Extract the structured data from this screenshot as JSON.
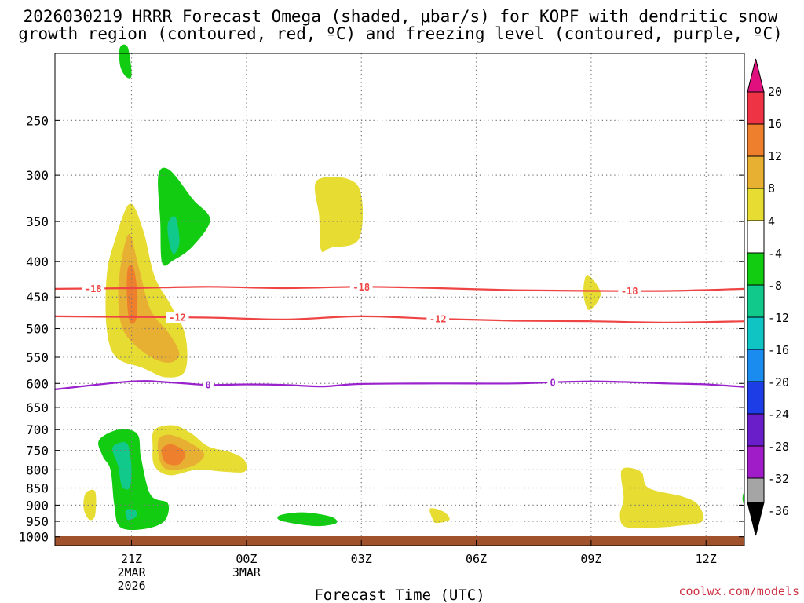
{
  "title_line1": "2026030219 HRRR Forecast Omega (shaded, μbar/s) for KOPF with dendritic snow",
  "title_line2": "growth region (contoured, red, ºC) and freezing level (contoured, purple, ºC)",
  "credit": "coolwx.com/models",
  "chart_data": {
    "type": "heatmap",
    "title": "2026030219 HRRR Forecast Omega (shaded, μbar/s) for KOPF with dendritic snow growth region (contoured, red, ºC) and freezing level (contoured, purple, ºC)",
    "xlabel": "Forecast Time (UTC)",
    "ylabel": "",
    "x_range_hours": [
      -2,
      16
    ],
    "x_ticks": [
      {
        "hour": 0,
        "lines": [
          "21Z",
          "2MAR",
          "2026"
        ]
      },
      {
        "hour": 3,
        "lines": [
          "00Z",
          "3MAR"
        ]
      },
      {
        "hour": 6,
        "lines": [
          "03Z"
        ]
      },
      {
        "hour": 9,
        "lines": [
          "06Z"
        ]
      },
      {
        "hour": 12,
        "lines": [
          "09Z"
        ]
      },
      {
        "hour": 15,
        "lines": [
          "12Z"
        ]
      }
    ],
    "y_axis": "pressure (hPa), log scale, inverted",
    "y_range": [
      1030,
      200
    ],
    "y_ticks": [
      250,
      300,
      350,
      400,
      450,
      500,
      550,
      600,
      650,
      700,
      750,
      800,
      850,
      900,
      950,
      1000
    ],
    "grid": true,
    "ground_level_hpa": 1010,
    "colorbar": {
      "labels": [
        20,
        16,
        12,
        8,
        4,
        -4,
        -8,
        -12,
        -16,
        -20,
        -24,
        -28,
        -32,
        -36
      ],
      "top_color": "#e0107f",
      "segments": [
        {
          "range": "16 to 20",
          "color": "#ee3344"
        },
        {
          "range": "12 to 16",
          "color": "#ee7f2d"
        },
        {
          "range": "8 to 12",
          "color": "#e8b032"
        },
        {
          "range": "4 to 8",
          "color": "#e6dc32"
        },
        {
          "range": "-4 to 4",
          "color": "#ffffff"
        },
        {
          "range": "-8 to -4",
          "color": "#12cc12"
        },
        {
          "range": "-12 to -8",
          "color": "#11c98a"
        },
        {
          "range": "-16 to -12",
          "color": "#11c4c4"
        },
        {
          "range": "-20 to -16",
          "color": "#1a8cf0"
        },
        {
          "range": "-24 to -20",
          "color": "#1d3de6"
        },
        {
          "range": "-28 to -24",
          "color": "#6a1ec9"
        },
        {
          "range": "-32 to -28",
          "color": "#a01cc9"
        },
        {
          "range": "-36 to -32",
          "color": "#a5a5a5"
        }
      ],
      "bottom_color": "#000000"
    },
    "temperature_contours": [
      {
        "label": "-18",
        "color": "#ee4444",
        "label_hours": [
          -1.0,
          6.0,
          13.0
        ],
        "points": [
          [
            -2,
            438
          ],
          [
            0,
            437
          ],
          [
            2,
            435
          ],
          [
            4,
            437
          ],
          [
            6,
            435
          ],
          [
            8,
            437
          ],
          [
            10,
            440
          ],
          [
            12,
            441
          ],
          [
            14,
            441
          ],
          [
            16,
            438
          ]
        ]
      },
      {
        "label": "-12",
        "color": "#ee4444",
        "label_hours": [
          1.2,
          8.0
        ],
        "points": [
          [
            -2,
            480
          ],
          [
            0,
            481
          ],
          [
            2,
            482
          ],
          [
            4,
            485
          ],
          [
            6,
            480
          ],
          [
            8,
            484
          ],
          [
            10,
            487
          ],
          [
            12,
            488
          ],
          [
            14,
            490
          ],
          [
            16,
            488
          ]
        ]
      },
      {
        "label": "0",
        "color": "#9922cc",
        "label_hours": [
          2.0,
          11.0
        ],
        "points": [
          [
            -2,
            612
          ],
          [
            0,
            596
          ],
          [
            1,
            598
          ],
          [
            2,
            603
          ],
          [
            3,
            602
          ],
          [
            4,
            603
          ],
          [
            5,
            606
          ],
          [
            6,
            601
          ],
          [
            8,
            600
          ],
          [
            10,
            600
          ],
          [
            12,
            596
          ],
          [
            14,
            600
          ],
          [
            15,
            602
          ],
          [
            16,
            607
          ]
        ]
      }
    ],
    "omega_regions": [
      {
        "value": -4,
        "color": "#12cc12",
        "points": [
          [
            -0.3,
            196
          ],
          [
            -0.1,
            196
          ],
          [
            0,
            215
          ],
          [
            -0.15,
            216
          ],
          [
            -0.3,
            208
          ]
        ]
      },
      {
        "value": -4,
        "color": "#12cc12",
        "points": [
          [
            0.7,
            300
          ],
          [
            1.0,
            295
          ],
          [
            1.6,
            325
          ],
          [
            2.05,
            348
          ],
          [
            1.6,
            380
          ],
          [
            1.1,
            398
          ],
          [
            0.8,
            402
          ],
          [
            0.75,
            350
          ]
        ]
      },
      {
        "value": -8,
        "color": "#11c98a",
        "points": [
          [
            0.95,
            352
          ],
          [
            1.15,
            345
          ],
          [
            1.25,
            375
          ],
          [
            1.1,
            390
          ],
          [
            0.98,
            375
          ]
        ]
      },
      {
        "value": -4,
        "color": "#12cc12",
        "points": [
          [
            -0.85,
            725
          ],
          [
            -0.35,
            700
          ],
          [
            0.15,
            710
          ],
          [
            0.25,
            770
          ],
          [
            0.5,
            870
          ],
          [
            0.95,
            895
          ],
          [
            0.85,
            950
          ],
          [
            0.3,
            975
          ],
          [
            -0.3,
            968
          ],
          [
            -0.45,
            900
          ],
          [
            -0.55,
            800
          ],
          [
            -0.75,
            765
          ]
        ]
      },
      {
        "value": -8,
        "color": "#11c98a",
        "points": [
          [
            -0.5,
            745
          ],
          [
            -0.25,
            730
          ],
          [
            -0.08,
            740
          ],
          [
            0.0,
            800
          ],
          [
            -0.05,
            850
          ],
          [
            -0.25,
            845
          ],
          [
            -0.35,
            790
          ]
        ]
      },
      {
        "value": -8,
        "color": "#11c98a",
        "points": [
          [
            -0.15,
            915
          ],
          [
            0.1,
            915
          ],
          [
            0.12,
            935
          ],
          [
            -0.1,
            945
          ]
        ]
      },
      {
        "value": -4,
        "color": "#12cc12",
        "points": [
          [
            3.9,
            930
          ],
          [
            4.5,
            922
          ],
          [
            5.2,
            935
          ],
          [
            5.35,
            955
          ],
          [
            4.9,
            965
          ],
          [
            4.3,
            958
          ],
          [
            3.85,
            945
          ]
        ]
      },
      {
        "value": -4,
        "color": "#12cc12",
        "points": [
          [
            15.95,
            880
          ],
          [
            16.0,
            860
          ],
          [
            16.0,
            900
          ]
        ]
      },
      {
        "value": 4,
        "color": "#e6dc32",
        "points": [
          [
            -0.45,
            375
          ],
          [
            -0.05,
            330
          ],
          [
            0.3,
            360
          ],
          [
            0.6,
            420
          ],
          [
            1.0,
            460
          ],
          [
            1.4,
            510
          ],
          [
            1.4,
            575
          ],
          [
            0.9,
            588
          ],
          [
            0.3,
            570
          ],
          [
            -0.4,
            550
          ],
          [
            -0.65,
            500
          ],
          [
            -0.65,
            420
          ]
        ]
      },
      {
        "value": 8,
        "color": "#e8b032",
        "points": [
          [
            -0.25,
            395
          ],
          [
            -0.05,
            365
          ],
          [
            0.2,
            410
          ],
          [
            0.5,
            470
          ],
          [
            1.0,
            510
          ],
          [
            1.25,
            545
          ],
          [
            0.95,
            560
          ],
          [
            0.4,
            545
          ],
          [
            -0.2,
            505
          ],
          [
            -0.35,
            450
          ]
        ]
      },
      {
        "value": 12,
        "color": "#ee7f2d",
        "points": [
          [
            -0.1,
            410
          ],
          [
            0.05,
            408
          ],
          [
            0.15,
            445
          ],
          [
            0.12,
            485
          ],
          [
            -0.05,
            488
          ],
          [
            -0.12,
            450
          ]
        ]
      },
      {
        "value": 4,
        "color": "#e6dc32",
        "points": [
          [
            0.6,
            700
          ],
          [
            1.1,
            690
          ],
          [
            1.55,
            708
          ],
          [
            2.0,
            740
          ],
          [
            2.6,
            755
          ],
          [
            2.95,
            775
          ],
          [
            2.95,
            805
          ],
          [
            2.4,
            805
          ],
          [
            1.7,
            800
          ],
          [
            1.0,
            815
          ],
          [
            0.6,
            790
          ],
          [
            0.55,
            740
          ]
        ]
      },
      {
        "value": 8,
        "color": "#e8b032",
        "points": [
          [
            0.7,
            725
          ],
          [
            1.0,
            712
          ],
          [
            1.5,
            730
          ],
          [
            1.9,
            760
          ],
          [
            1.6,
            790
          ],
          [
            1.0,
            800
          ],
          [
            0.75,
            780
          ]
        ]
      },
      {
        "value": 12,
        "color": "#ee7f2d",
        "points": [
          [
            0.8,
            745
          ],
          [
            1.05,
            735
          ],
          [
            1.4,
            755
          ],
          [
            1.25,
            785
          ],
          [
            0.95,
            785
          ],
          [
            0.82,
            770
          ]
        ]
      },
      {
        "value": 4,
        "color": "#e6dc32",
        "points": [
          [
            -1.2,
            865
          ],
          [
            -0.95,
            860
          ],
          [
            -0.95,
            930
          ],
          [
            -1.1,
            945
          ],
          [
            -1.25,
            910
          ]
        ]
      },
      {
        "value": 4,
        "color": "#e6dc32",
        "points": [
          [
            4.85,
            305
          ],
          [
            5.9,
            310
          ],
          [
            5.95,
            370
          ],
          [
            5.2,
            382
          ],
          [
            4.95,
            385
          ],
          [
            4.9,
            345
          ]
        ]
      },
      {
        "value": 4,
        "color": "#e6dc32",
        "points": [
          [
            11.9,
            418
          ],
          [
            12.25,
            445
          ],
          [
            11.95,
            470
          ],
          [
            11.8,
            445
          ]
        ]
      },
      {
        "value": 4,
        "color": "#e6dc32",
        "points": [
          [
            7.8,
            910
          ],
          [
            8.15,
            920
          ],
          [
            8.3,
            945
          ],
          [
            7.95,
            955
          ],
          [
            7.85,
            940
          ]
        ]
      },
      {
        "value": 4,
        "color": "#e6dc32",
        "points": [
          [
            12.8,
            800
          ],
          [
            13.3,
            805
          ],
          [
            13.5,
            850
          ],
          [
            14.4,
            875
          ],
          [
            14.8,
            900
          ],
          [
            14.9,
            950
          ],
          [
            14.2,
            965
          ],
          [
            13.6,
            970
          ],
          [
            12.9,
            968
          ],
          [
            12.75,
            930
          ],
          [
            12.85,
            880
          ]
        ]
      }
    ]
  }
}
